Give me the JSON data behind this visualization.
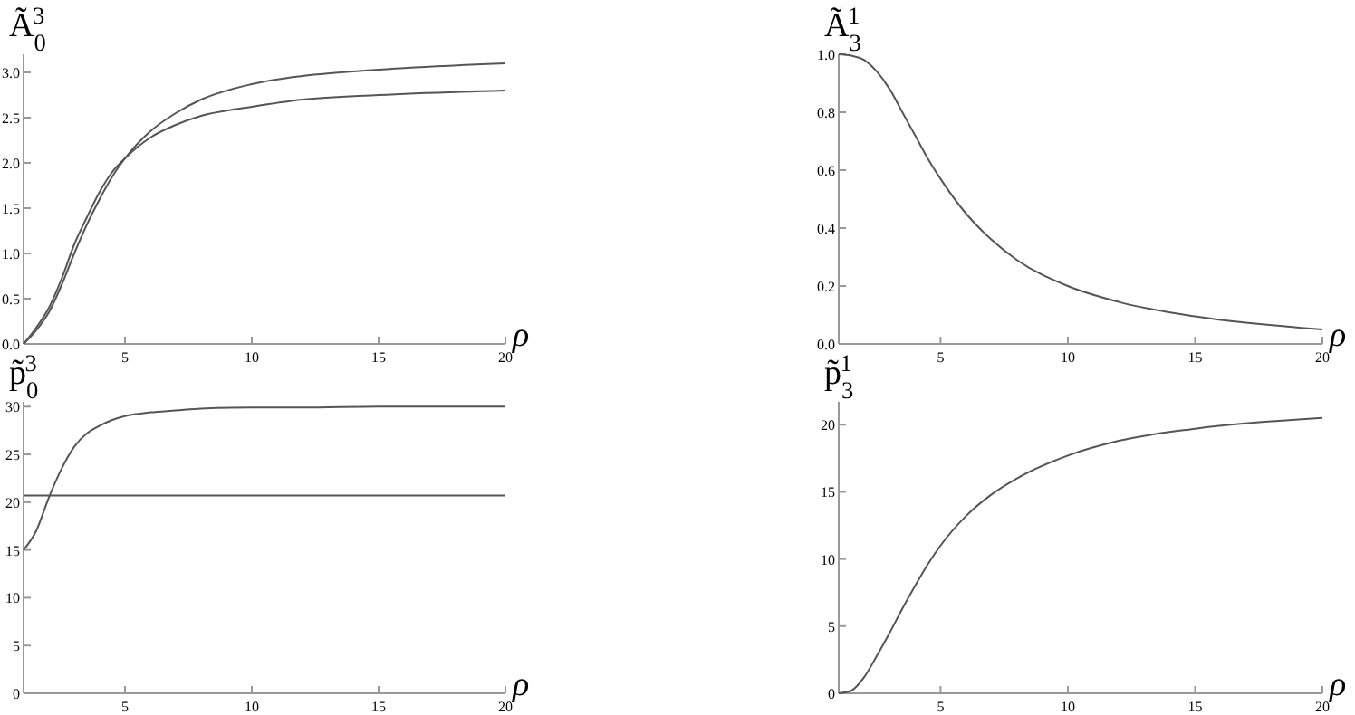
{
  "chart_data": [
    {
      "type": "line",
      "ylabel": "Ã$_{0}$$^{3}$",
      "xlabel": "ρ",
      "x": [
        1,
        1.5,
        2,
        2.5,
        3,
        3.5,
        4,
        4.5,
        5,
        6,
        7,
        8,
        10,
        12,
        15,
        20
      ],
      "xlim": [
        1,
        20
      ],
      "xticks": [
        5,
        10,
        15,
        20
      ],
      "ylim": [
        0,
        3.2
      ],
      "yticks": [
        {
          "value": 0,
          "label": "0.0"
        },
        0.5,
        {
          "value": 1,
          "label": "1.0"
        },
        1.5,
        {
          "value": 2,
          "label": "2.0"
        },
        2.5,
        {
          "value": 3,
          "label": "3.0"
        }
      ],
      "grid": false,
      "marker": "none",
      "line_style": "solid",
      "series": [
        {
          "color": "#555555",
          "values": [
            0,
            0.15,
            0.35,
            0.65,
            1.0,
            1.32,
            1.6,
            1.85,
            2.05,
            2.35,
            2.55,
            2.7,
            2.87,
            2.96,
            3.03,
            3.1
          ]
        },
        {
          "color": "#555555",
          "values": [
            0,
            0.18,
            0.4,
            0.72,
            1.1,
            1.4,
            1.68,
            1.9,
            2.05,
            2.28,
            2.42,
            2.52,
            2.62,
            2.7,
            2.75,
            2.8
          ]
        }
      ]
    },
    {
      "type": "line",
      "ylabel": "Ã$_{3}$$^{1}$",
      "xlabel": "ρ",
      "x": [
        1,
        1.5,
        2,
        2.5,
        3,
        3.5,
        4,
        4.5,
        5,
        6,
        7,
        8,
        10,
        12,
        15,
        20
      ],
      "xlim": [
        1,
        20
      ],
      "xticks": [
        5,
        10,
        15,
        20
      ],
      "ylim": [
        0,
        1.0
      ],
      "yticks": [
        {
          "value": 0,
          "label": "0.0"
        },
        0.2,
        0.4,
        0.6,
        0.8,
        {
          "value": 1,
          "label": "1.0"
        }
      ],
      "grid": false,
      "marker": "none",
      "line_style": "solid",
      "series": [
        {
          "color": "#555555",
          "values": [
            1.0,
            0.995,
            0.98,
            0.94,
            0.88,
            0.8,
            0.72,
            0.64,
            0.57,
            0.45,
            0.36,
            0.29,
            0.2,
            0.145,
            0.095,
            0.05
          ]
        }
      ]
    },
    {
      "type": "line",
      "ylabel": "p̃$_{0}$$^{3}$",
      "xlabel": "ρ",
      "x": [
        1,
        1.5,
        2,
        2.5,
        3,
        3.5,
        4,
        4.5,
        5,
        6,
        7,
        8,
        10,
        12,
        15,
        20
      ],
      "xlim": [
        1,
        20
      ],
      "xticks": [
        5,
        10,
        15,
        20
      ],
      "ylim": [
        0,
        30.5
      ],
      "yticks": [
        0,
        5,
        10,
        15,
        20,
        25,
        30
      ],
      "grid": false,
      "marker": "none",
      "line_style": "solid",
      "ref_lines": [
        {
          "axis": "y",
          "value": 20.7,
          "color": "#555555"
        }
      ],
      "series": [
        {
          "color": "#555555",
          "values": [
            15,
            17,
            20.5,
            23.5,
            25.8,
            27.2,
            28,
            28.6,
            29,
            29.4,
            29.6,
            29.8,
            29.9,
            29.9,
            30,
            30
          ]
        }
      ]
    },
    {
      "type": "line",
      "ylabel": "p̃$_{3}$$^{1}$",
      "xlabel": "ρ",
      "x": [
        1,
        1.5,
        2,
        2.5,
        3,
        3.5,
        4,
        4.5,
        5,
        6,
        7,
        8,
        10,
        12,
        15,
        20
      ],
      "xlim": [
        1,
        20
      ],
      "xticks": [
        5,
        10,
        15,
        20
      ],
      "ylim": [
        0,
        21.7
      ],
      "yticks": [
        0,
        5,
        10,
        15,
        20
      ],
      "grid": false,
      "marker": "none",
      "line_style": "solid",
      "series": [
        {
          "color": "#555555",
          "values": [
            0,
            0.2,
            1.2,
            2.8,
            4.5,
            6.3,
            8,
            9.6,
            11,
            13.2,
            14.8,
            16,
            17.7,
            18.8,
            19.7,
            20.5
          ]
        }
      ]
    }
  ]
}
